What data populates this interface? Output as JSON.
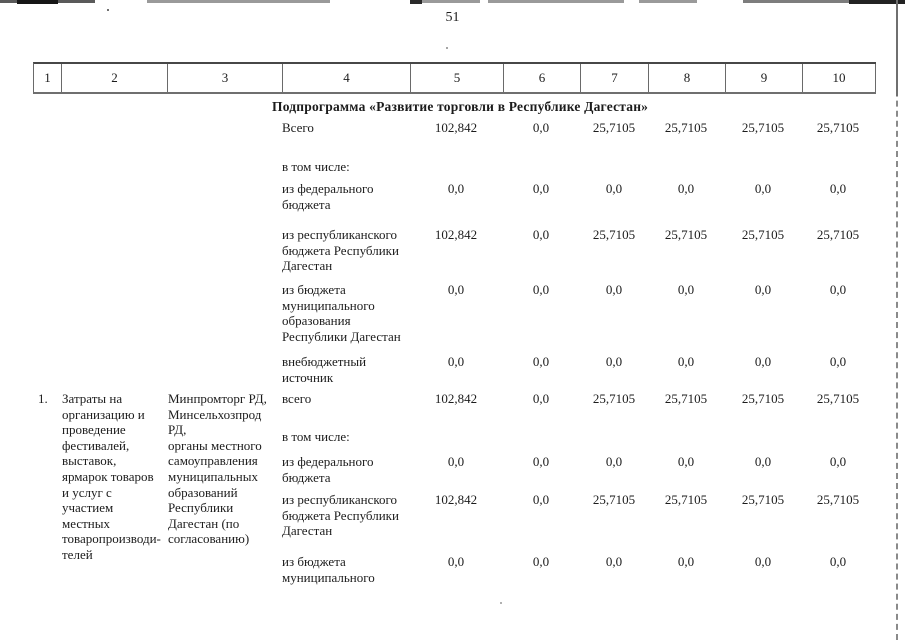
{
  "page": {
    "number": "51"
  },
  "table": {
    "header_columns": [
      "1",
      "2",
      "3",
      "4",
      "5",
      "6",
      "7",
      "8",
      "9",
      "10"
    ],
    "section_title": "Подпрограмма «Развитие торговли в Республике Дагестан»",
    "summary_rows": [
      {
        "label": "Всего",
        "values": [
          "102,842",
          "0,0",
          "25,7105",
          "25,7105",
          "25,7105",
          "25,7105"
        ]
      },
      {
        "label": "в том числе:",
        "values": []
      },
      {
        "label": "из федерального\nбюджета",
        "values": [
          "0,0",
          "0,0",
          "0,0",
          "0,0",
          "0,0",
          "0,0"
        ]
      },
      {
        "label": "из республиканского\nбюджета Республики\nДагестан",
        "values": [
          "102,842",
          "0,0",
          "25,7105",
          "25,7105",
          "25,7105",
          "25,7105"
        ]
      },
      {
        "label": "из бюджета\nмуниципального\nобразования\nРеспублики Дагестан",
        "values": [
          "0,0",
          "0,0",
          "0,0",
          "0,0",
          "0,0",
          "0,0"
        ]
      },
      {
        "label": "внебюджетный\nисточник",
        "values": [
          "0,0",
          "0,0",
          "0,0",
          "0,0",
          "0,0",
          "0,0"
        ]
      }
    ],
    "item": {
      "number": "1.",
      "name": "Затраты на\nорганизацию и\nпроведение\nфестивалей,\nвыставок,\nярмарок товаров\nи услуг с\nучастием\nместных\nтоваропроизводи-\nтелей",
      "executors": "Минпромторг РД,\nМинсельхозпрод\nРД,\nорганы местного\nсамоуправления\nмуниципальных\nобразований\nРеспублики\nДагестан (по\nсогласованию)",
      "rows": [
        {
          "label": "всего",
          "values": [
            "102,842",
            "0,0",
            "25,7105",
            "25,7105",
            "25,7105",
            "25,7105"
          ]
        },
        {
          "label": "в том числе:",
          "values": []
        },
        {
          "label": "из федерального\nбюджета",
          "values": [
            "0,0",
            "0,0",
            "0,0",
            "0,0",
            "0,0",
            "0,0"
          ]
        },
        {
          "label": "из республиканского\nбюджета Республики\nДагестан",
          "values": [
            "102,842",
            "0,0",
            "25,7105",
            "25,7105",
            "25,7105",
            "25,7105"
          ]
        },
        {
          "label": "из бюджета\nмуниципального",
          "values": [
            "0,0",
            "0,0",
            "0,0",
            "0,0",
            "0,0",
            "0,0"
          ]
        }
      ]
    }
  },
  "colors": {
    "ink": "#1c1c1c",
    "line_dark": "#474747",
    "line_gray": "#8a8a8a"
  }
}
